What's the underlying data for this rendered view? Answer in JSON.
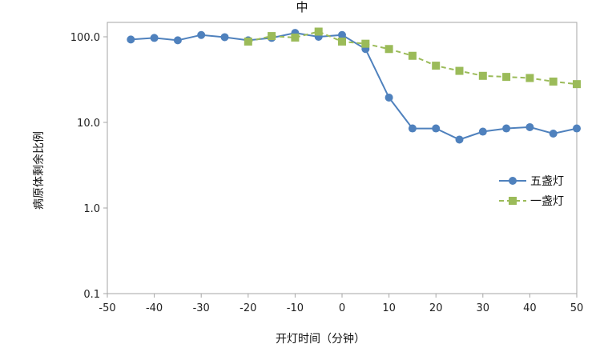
{
  "chart_data": {
    "type": "line",
    "title": "中",
    "xlabel": "开灯时间（分钟）",
    "ylabel": "病原体剩余比例",
    "y_scale": "log",
    "xlim": [
      -50,
      50
    ],
    "ylim": [
      0.1,
      200
    ],
    "x_ticks": [
      -50,
      -40,
      -30,
      -20,
      -10,
      0,
      10,
      20,
      30,
      40,
      50
    ],
    "x_tick_labels": [
      "-50",
      "-40",
      "-30",
      "-20",
      "-10",
      "0",
      "10",
      "20",
      "30",
      "40",
      "50"
    ],
    "y_ticks": [
      0.1,
      1,
      10,
      100
    ],
    "y_tick_labels": [
      "0.1",
      "1.0",
      "10.0",
      "100.0"
    ],
    "grid": false,
    "legend_position": "right",
    "series": [
      {
        "name": "五盏灯",
        "color": "#4f81bd",
        "marker": "circle",
        "line_style": "solid",
        "x": [
          -45,
          -40,
          -35,
          -30,
          -25,
          -20,
          -15,
          -10,
          -5,
          0,
          5,
          10,
          15,
          20,
          25,
          30,
          35,
          40,
          45,
          50
        ],
        "y": [
          93,
          97,
          91,
          105,
          99,
          91,
          97,
          111,
          100,
          105,
          72,
          19.5,
          8.5,
          8.5,
          6.3,
          7.8,
          8.5,
          8.8,
          7.4,
          8.5
        ]
      },
      {
        "name": "一盏灯",
        "color": "#9bbb59",
        "marker": "square",
        "line_style": "dashed",
        "x": [
          -20,
          -15,
          -10,
          -5,
          0,
          5,
          10,
          15,
          20,
          25,
          30,
          35,
          40,
          45,
          50
        ],
        "y": [
          88,
          102,
          98,
          115,
          88,
          83,
          72,
          60,
          46,
          40,
          35,
          34,
          33,
          30,
          28
        ]
      }
    ]
  }
}
